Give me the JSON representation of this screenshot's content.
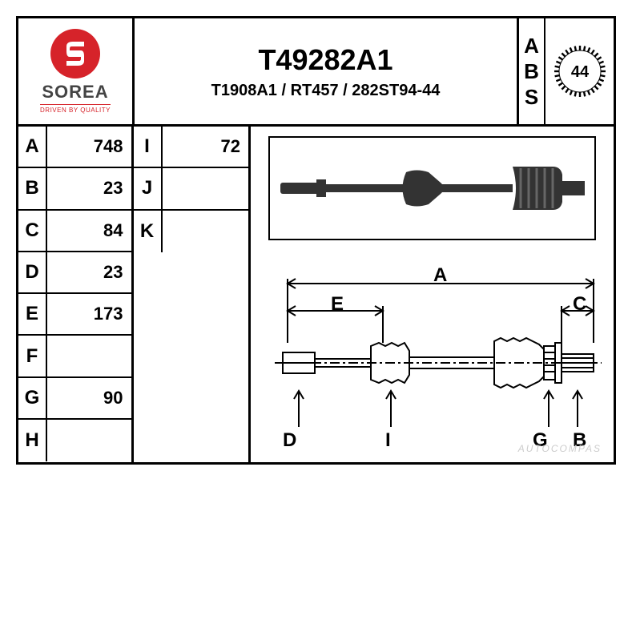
{
  "logo": {
    "brand": "SOREA",
    "tagline": "DRIVEN BY QUALITY",
    "icon_bg": "#d6232a",
    "icon_fg": "#ffffff"
  },
  "header": {
    "part_number": "T49282A1",
    "cross_refs": "T1908A1 / RT457 / 282ST94-44"
  },
  "abs": {
    "label_chars": [
      "A",
      "B",
      "S"
    ],
    "teeth": "44"
  },
  "specs_col1": [
    {
      "key": "A",
      "val": "748"
    },
    {
      "key": "B",
      "val": "23"
    },
    {
      "key": "C",
      "val": "84"
    },
    {
      "key": "D",
      "val": "23"
    },
    {
      "key": "E",
      "val": "173"
    },
    {
      "key": "F",
      "val": ""
    },
    {
      "key": "G",
      "val": "90"
    },
    {
      "key": "H",
      "val": ""
    }
  ],
  "specs_col2": [
    {
      "key": "I",
      "val": "72"
    },
    {
      "key": "J",
      "val": ""
    },
    {
      "key": "K",
      "val": ""
    }
  ],
  "diagram": {
    "dim_labels": {
      "A": "A",
      "E": "E",
      "C": "C",
      "D": "D",
      "I": "I",
      "G": "G",
      "B": "B"
    }
  },
  "colors": {
    "line": "#000000",
    "bg": "#ffffff",
    "accent": "#d6232a",
    "watermark": "#cccccc"
  },
  "watermark": "AUTOCOMPAS"
}
